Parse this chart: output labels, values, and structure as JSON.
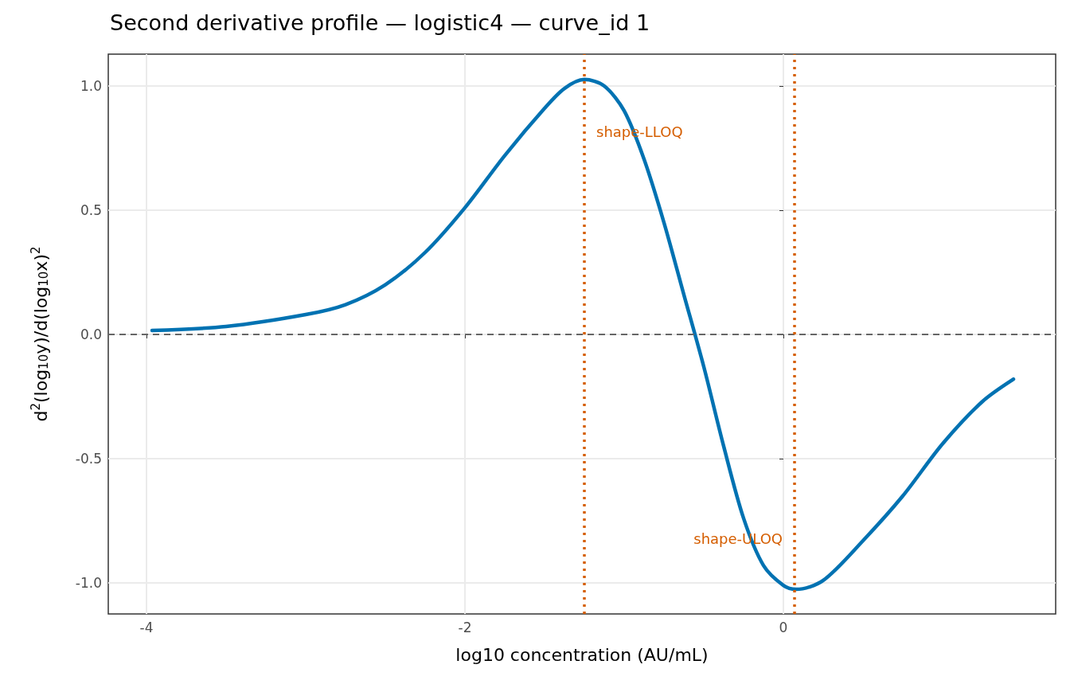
{
  "chart_data": {
    "type": "line",
    "title": "Second derivative profile — logistic4 — curve_id 1",
    "xlabel": "log10 concentration (AU/mL)",
    "ylabel": "d$^{2}$(log$_{10}$y)/d(log$_{10}$x)$^{2}$",
    "x": [
      -3.965,
      -3.5,
      -3.0,
      -2.75,
      -2.5,
      -2.25,
      -2.0,
      -1.75,
      -1.5,
      -1.375,
      -1.25,
      -1.125,
      -1.0,
      -0.875,
      -0.75,
      -0.625,
      -0.5,
      -0.375,
      -0.25,
      -0.125,
      0.0,
      0.08,
      0.25,
      0.5,
      0.75,
      1.0,
      1.25,
      1.445
    ],
    "series": [
      {
        "color": "#0072b2",
        "values": [
          0.016,
          0.032,
          0.08,
          0.12,
          0.2,
          0.33,
          0.51,
          0.72,
          0.91,
          0.99,
          1.026,
          1.0,
          0.9,
          0.705,
          0.45,
          0.16,
          -0.13,
          -0.45,
          -0.74,
          -0.93,
          -1.01,
          -1.026,
          -0.99,
          -0.83,
          -0.65,
          -0.44,
          -0.27,
          -0.18
        ]
      }
    ],
    "xlim": [
      -4.24,
      1.71
    ],
    "xticks": [
      -4,
      -2,
      0
    ],
    "ylim": [
      -1.125,
      1.128
    ],
    "yticks": [
      {
        "value": -1,
        "label": "-1.0"
      },
      {
        "value": -0.5,
        "label": "-0.5"
      },
      {
        "value": 0,
        "label": "0.0"
      },
      {
        "value": 0.5,
        "label": "0.5"
      },
      {
        "value": 1,
        "label": "1.0"
      }
    ],
    "ref_lines": [
      {
        "axis": "y",
        "value": 0,
        "color": "#666666",
        "line_style": "dashed"
      },
      {
        "axis": "x",
        "value": -1.255,
        "color": "#d55e00",
        "line_style": "dotted",
        "label": "shape-LLOQ"
      },
      {
        "axis": "x",
        "value": 0.075,
        "color": "#d55e00",
        "line_style": "dotted",
        "label": "shape-ULOQ"
      }
    ],
    "grid": true,
    "marker": "none",
    "line_style": "solid"
  }
}
